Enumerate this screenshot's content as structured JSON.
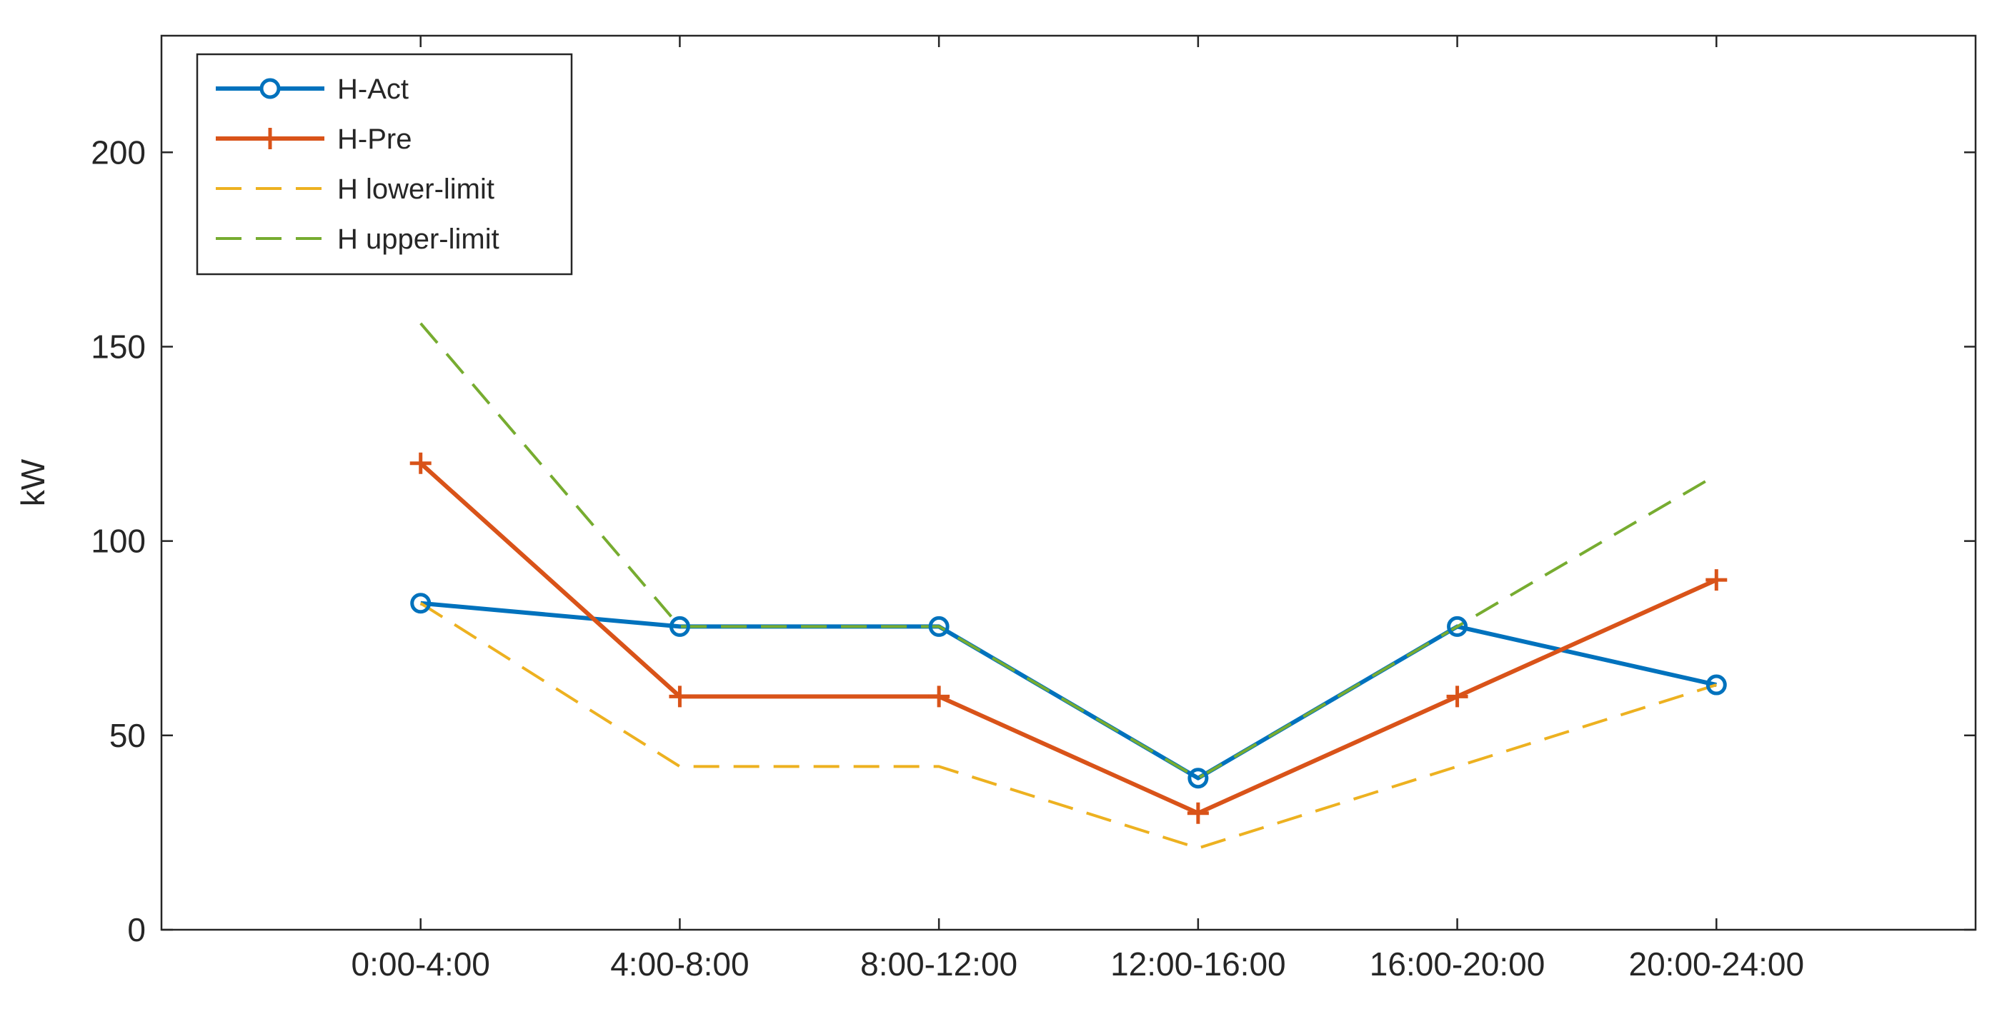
{
  "chart_data": {
    "type": "line",
    "title": "",
    "xlabel": "",
    "ylabel": "kW",
    "categories": [
      "0:00-4:00",
      "4:00-8:00",
      "8:00-12:00",
      "12:00-16:00",
      "16:00-20:00",
      "20:00-24:00"
    ],
    "ylim": [
      0,
      230
    ],
    "yticks": [
      0,
      50,
      100,
      150,
      200
    ],
    "grid": false,
    "legend_position": "top-left",
    "series": [
      {
        "name": "H-Act",
        "values": [
          84,
          78,
          78,
          39,
          78,
          63
        ],
        "color": "#0072BD",
        "style": "solid",
        "marker": "circle"
      },
      {
        "name": "H-Pre",
        "values": [
          120,
          60,
          60,
          30,
          60,
          90
        ],
        "color": "#D95319",
        "style": "solid",
        "marker": "plus"
      },
      {
        "name": "H lower-limit",
        "values": [
          84,
          42,
          42,
          21,
          42,
          63
        ],
        "color": "#EDB120",
        "style": "dashed",
        "marker": "none"
      },
      {
        "name": "H upper-limit",
        "values": [
          156,
          78,
          78,
          39,
          78,
          117
        ],
        "color": "#77AC30",
        "style": "dashed",
        "marker": "none"
      }
    ]
  }
}
